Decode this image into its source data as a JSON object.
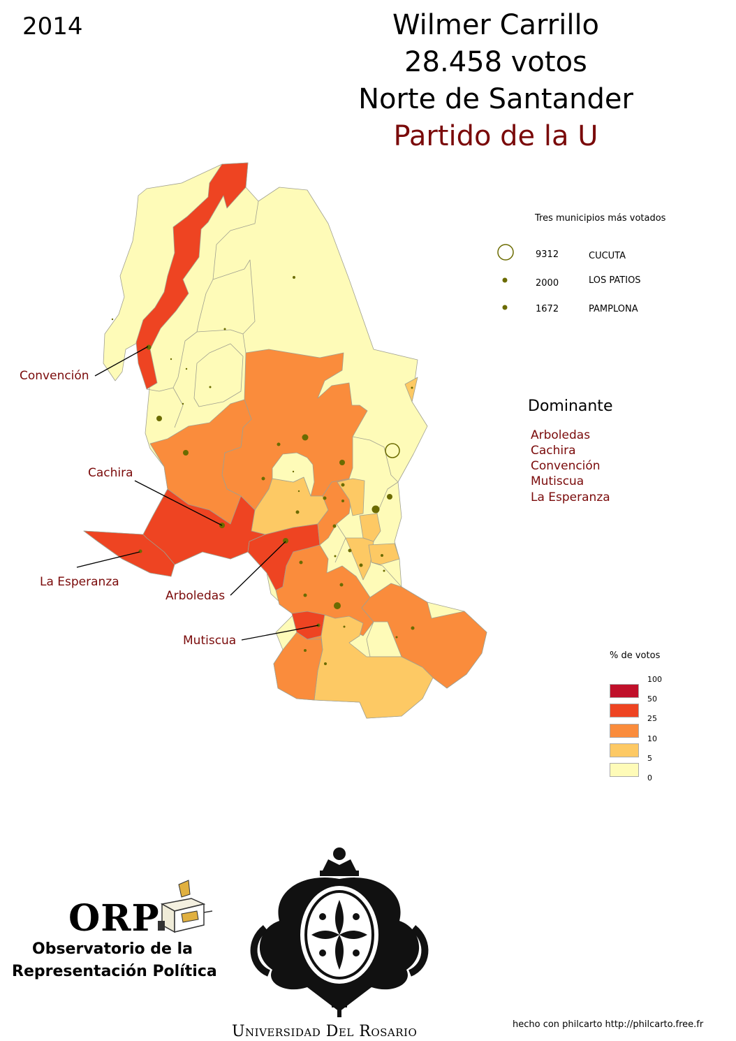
{
  "year": "2014",
  "title": {
    "candidate": "Wilmer Carrillo",
    "votes": "28.458 votos",
    "department": "Norte de Santander",
    "party": "Partido de la U",
    "party_color": "#7a0a0a"
  },
  "top_municipalities": {
    "title": "Tres municipios más votados",
    "items": [
      {
        "votes": "9312",
        "name": "CUCUTA"
      },
      {
        "votes": "2000",
        "name": "LOS PATIOS"
      },
      {
        "votes": "1672",
        "name": "PAMPLONA"
      }
    ]
  },
  "dominant": {
    "title": "Dominante",
    "items": [
      "Arboledas",
      "Cachira",
      "Convención",
      "Mutiscua",
      "La Esperanza"
    ]
  },
  "legend": {
    "title": "% de votos",
    "breaks": [
      "100",
      "50",
      "25",
      "10",
      "5",
      "0"
    ],
    "classes": [
      {
        "range": "50-100",
        "color": "#c0102a"
      },
      {
        "range": "25-50",
        "color": "#ee4422"
      },
      {
        "range": "10-25",
        "color": "#fa8c3c"
      },
      {
        "range": "5-10",
        "color": "#fdc964"
      },
      {
        "range": "0-5",
        "color": "#fefbb8"
      }
    ]
  },
  "callouts": {
    "convencion": "Convención",
    "cachira": "Cachira",
    "la_esperanza": "La Esperanza",
    "arboledas": "Arboledas",
    "mutiscua": "Mutiscua"
  },
  "logos": {
    "orp_short": "ORP",
    "orp_line1": "Observatorio de la",
    "orp_line2": "Representación Política",
    "university": "Universidad Del Rosario"
  },
  "credit": "hecho con philcarto http://philcarto.free.fr"
}
